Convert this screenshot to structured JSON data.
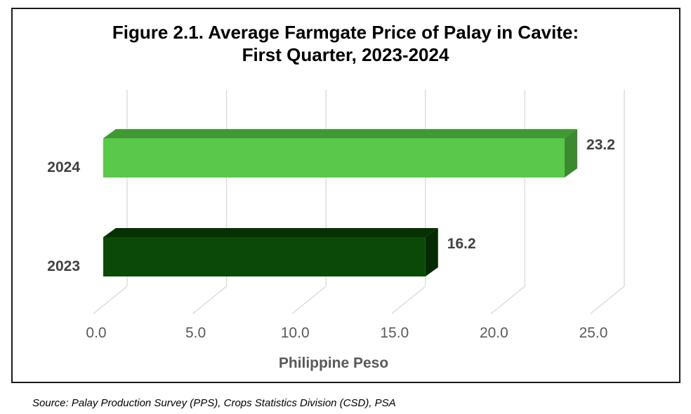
{
  "chart_data": {
    "type": "bar",
    "orientation": "horizontal",
    "title_lines": [
      "Figure 2.1. Average Farmgate Price of Palay in Cavite:",
      "First Quarter, 2023-2024"
    ],
    "categories": [
      "2024",
      "2023"
    ],
    "values": [
      23.2,
      16.2
    ],
    "value_labels": [
      "23.2",
      "16.2"
    ],
    "bar_colors": [
      "#5ac84a",
      "#0a4a06"
    ],
    "bar_top_colors": [
      "#3f9a33",
      "#063203"
    ],
    "bar_side_colors": [
      "#3a8a2e",
      "#052a02"
    ],
    "xlabel": "Philippine Peso",
    "ylabel": "",
    "xlim": [
      0,
      25
    ],
    "x_ticks": [
      0,
      5,
      10,
      15,
      20,
      25
    ],
    "x_tick_labels": [
      "0.0",
      "5.0",
      "10.0",
      "15.0",
      "20.0",
      "25.0"
    ],
    "grid": true,
    "legend": "none",
    "style": "3d"
  },
  "source_note": "Source: Palay Production Survey (PPS), Crops Statistics Division (CSD), PSA"
}
